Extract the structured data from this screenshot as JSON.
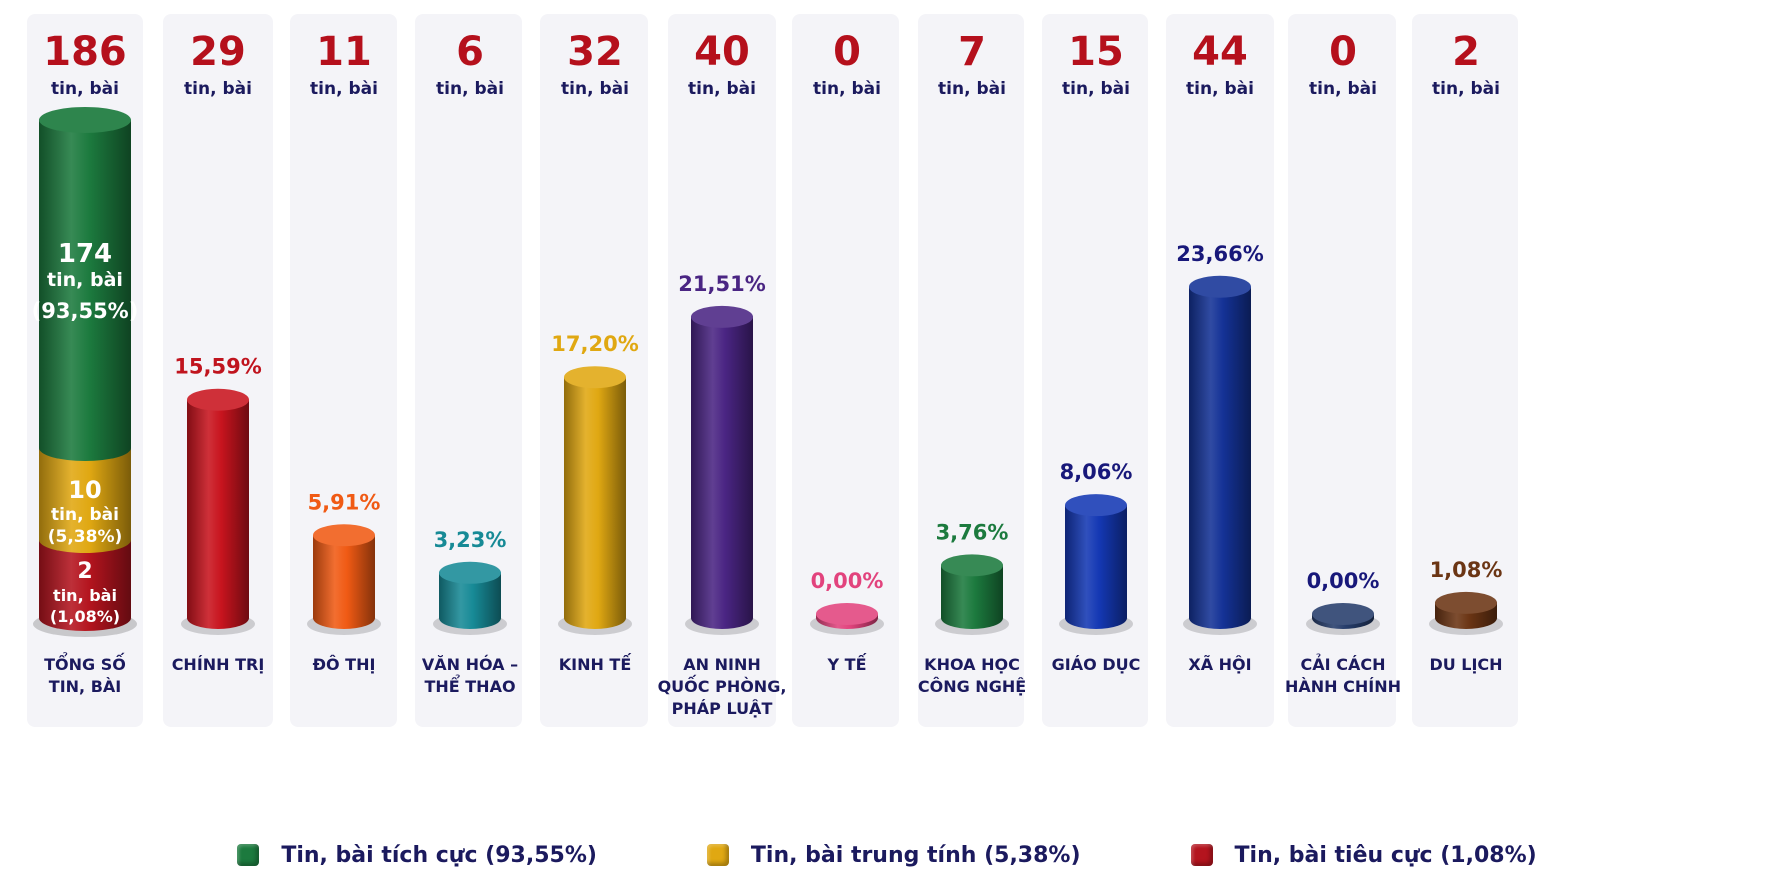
{
  "chart_data": {
    "type": "bar",
    "categories": [
      "TỔNG SỐ TIN, BÀI",
      "CHÍNH TRỊ",
      "ĐÔ THỊ",
      "VĂN HÓA – THỂ THAO",
      "KINH TẾ",
      "AN NINH QUỐC PHÒNG, PHÁP LUẬT",
      "Y TẾ",
      "KHOA HỌC CÔNG NGHỆ",
      "GIÁO DỤC",
      "XÃ HỘI",
      "CẢI CÁCH HÀNH CHÍNH",
      "DU LỊCH"
    ],
    "category_lines": [
      [
        "TỔNG SỐ",
        "TIN, BÀI"
      ],
      [
        "CHÍNH TRỊ"
      ],
      [
        "ĐÔ THỊ"
      ],
      [
        "VĂN HÓA –",
        "THỂ THAO"
      ],
      [
        "KINH TẾ"
      ],
      [
        "AN NINH",
        "QUỐC PHÒNG,",
        "PHÁP LUẬT"
      ],
      [
        "Y TẾ"
      ],
      [
        "KHOA HỌC",
        "CÔNG NGHỆ"
      ],
      [
        "GIÁO DỤC"
      ],
      [
        "XÃ HỘI"
      ],
      [
        "CẢI CÁCH",
        "HÀNH CHÍNH"
      ],
      [
        "DU LỊCH"
      ]
    ],
    "counts": [
      186,
      29,
      11,
      6,
      32,
      40,
      0,
      7,
      15,
      44,
      0,
      2
    ],
    "count_unit": "tin, bài",
    "percent_values": [
      null,
      15.59,
      5.91,
      3.23,
      17.2,
      21.51,
      0.0,
      3.76,
      8.06,
      23.66,
      0.0,
      1.08
    ],
    "percent_labels": [
      "",
      "15,59%",
      "5,91%",
      "3,23%",
      "17,20%",
      "21,51%",
      "0,00%",
      "3,76%",
      "8,06%",
      "23,66%",
      "0,00%",
      "1,08%"
    ],
    "bar_colors": [
      "",
      "#c8141e",
      "#f05a14",
      "#178a96",
      "#e0a812",
      "#4a2583",
      "#e2437d",
      "#1c7a3e",
      "#1438b4",
      "#143296",
      "#263d6b",
      "#6b3514"
    ],
    "label_colors": [
      "",
      "#c0141e",
      "#f05a14",
      "#178a96",
      "#e0a812",
      "#4a2583",
      "#e2437d",
      "#1c7a3e",
      "#18187a",
      "#18187a",
      "#18187a",
      "#6b3514"
    ],
    "stacked_total": {
      "segments": [
        {
          "name": "Tin, bài tích cực",
          "value": 174,
          "percent": "(93,55%)",
          "color": "#1c7a3e"
        },
        {
          "name": "Tin, bài trung tính",
          "value": 10,
          "percent": "(5,38%)",
          "color": "#e0a812"
        },
        {
          "name": "Tin, bài tiêu cực",
          "value": 2,
          "percent": "(1,08%)",
          "color": "#b4141e"
        }
      ]
    },
    "title": "",
    "xlabel": "",
    "ylabel": "",
    "ylim": [
      0,
      186
    ],
    "grid": false,
    "legend": "bottom"
  },
  "legend_items": [
    {
      "label": "Tin, bài tích cực (93,55%)",
      "color": "#1c7a3e"
    },
    {
      "label": "Tin, bài trung tính (5,38%)",
      "color": "#e0a812"
    },
    {
      "label": "Tin, bài tiêu cực (1,08%)",
      "color": "#b4141e"
    }
  ],
  "colors": {
    "count": "#b5101c",
    "count_unit": "#1b1a5e",
    "category": "#1b1a5e",
    "panel": "#f4f4f8"
  }
}
